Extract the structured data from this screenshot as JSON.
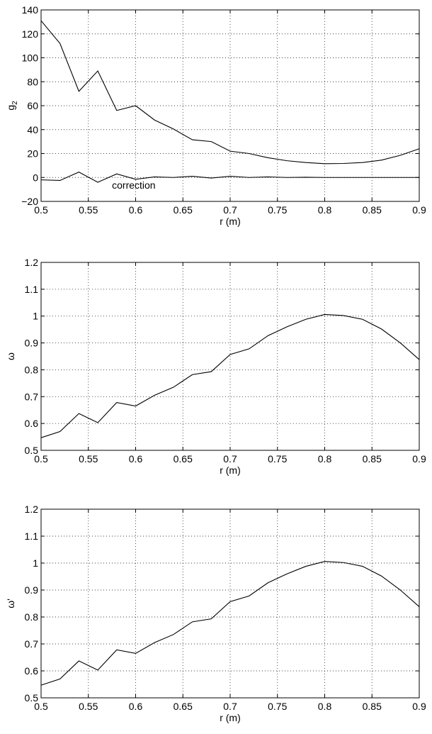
{
  "chart_data": [
    {
      "type": "line",
      "xlabel": "r (m)",
      "ylabel": "g",
      "ylabel_sub": "2",
      "xlim": [
        0.5,
        0.9
      ],
      "ylim": [
        -20,
        140
      ],
      "xticks": [
        0.5,
        0.55,
        0.6,
        0.65,
        0.7,
        0.75,
        0.8,
        0.85,
        0.9
      ],
      "xtick_labels": [
        "0.5",
        "0.55",
        "0.6",
        "0.65",
        "0.7",
        "0.75",
        "0.8",
        "0.85",
        "0.9"
      ],
      "yticks": [
        -20,
        0,
        20,
        40,
        60,
        80,
        100,
        120,
        140
      ],
      "ytick_labels": [
        "−20",
        "0",
        "20",
        "40",
        "60",
        "80",
        "100",
        "120",
        "140"
      ],
      "grid": true,
      "annotations": [
        {
          "text": "correction",
          "x": 0.575,
          "y": -7
        }
      ],
      "series": [
        {
          "x": [
            0.5,
            0.52,
            0.54,
            0.56,
            0.58,
            0.6,
            0.62,
            0.64,
            0.66,
            0.68,
            0.7,
            0.72,
            0.74,
            0.76,
            0.78,
            0.8,
            0.82,
            0.84,
            0.86,
            0.88,
            0.9
          ],
          "values": [
            131,
            112,
            72,
            89,
            56,
            60,
            48,
            40.5,
            31.5,
            30,
            22,
            20,
            16.5,
            14,
            12.5,
            11.5,
            11.7,
            12.5,
            14.5,
            18.5,
            24
          ]
        },
        {
          "name": "correction",
          "x": [
            0.5,
            0.52,
            0.54,
            0.56,
            0.58,
            0.6,
            0.62,
            0.64,
            0.66,
            0.68,
            0.7,
            0.72,
            0.74,
            0.76,
            0.78,
            0.8,
            0.82,
            0.84,
            0.86,
            0.88,
            0.9
          ],
          "values": [
            -2,
            -2.5,
            4.5,
            -4,
            3,
            -1.5,
            0.5,
            0,
            1,
            -0.5,
            1,
            0,
            0.5,
            0,
            0.2,
            0,
            0,
            0,
            0,
            0,
            0
          ]
        }
      ]
    },
    {
      "type": "line",
      "xlabel": "r (m)",
      "ylabel": "ω",
      "ylabel_sub": "",
      "xlim": [
        0.5,
        0.9
      ],
      "ylim": [
        0.5,
        1.2
      ],
      "xticks": [
        0.5,
        0.55,
        0.6,
        0.65,
        0.7,
        0.75,
        0.8,
        0.85,
        0.9
      ],
      "xtick_labels": [
        "0.5",
        "0.55",
        "0.6",
        "0.65",
        "0.7",
        "0.75",
        "0.8",
        "0.85",
        "0.9"
      ],
      "yticks": [
        0.5,
        0.6,
        0.7,
        0.8,
        0.9,
        1.0,
        1.1,
        1.2
      ],
      "ytick_labels": [
        "0.5",
        "0.6",
        "0.7",
        "0.8",
        "0.9",
        "1",
        "1.1",
        "1.2"
      ],
      "grid": true,
      "annotations": [],
      "series": [
        {
          "x": [
            0.5,
            0.52,
            0.54,
            0.56,
            0.58,
            0.6,
            0.62,
            0.64,
            0.66,
            0.68,
            0.7,
            0.72,
            0.74,
            0.76,
            0.78,
            0.8,
            0.82,
            0.84,
            0.86,
            0.88,
            0.9
          ],
          "values": [
            0.547,
            0.57,
            0.637,
            0.603,
            0.678,
            0.665,
            0.705,
            0.735,
            0.782,
            0.793,
            0.857,
            0.878,
            0.927,
            0.96,
            0.988,
            1.006,
            1.002,
            0.988,
            0.952,
            0.9,
            0.838
          ]
        }
      ]
    },
    {
      "type": "line",
      "xlabel": "r (m)",
      "ylabel": "ω'",
      "ylabel_sub": "",
      "xlim": [
        0.5,
        0.9
      ],
      "ylim": [
        0.5,
        1.2
      ],
      "xticks": [
        0.5,
        0.55,
        0.6,
        0.65,
        0.7,
        0.75,
        0.8,
        0.85,
        0.9
      ],
      "xtick_labels": [
        "0.5",
        "0.55",
        "0.6",
        "0.65",
        "0.7",
        "0.75",
        "0.8",
        "0.85",
        "0.9"
      ],
      "yticks": [
        0.5,
        0.6,
        0.7,
        0.8,
        0.9,
        1.0,
        1.1,
        1.2
      ],
      "ytick_labels": [
        "0.5",
        "0.6",
        "0.7",
        "0.8",
        "0.9",
        "1",
        "1.1",
        "1.2"
      ],
      "grid": true,
      "annotations": [],
      "series": [
        {
          "x": [
            0.5,
            0.52,
            0.54,
            0.56,
            0.58,
            0.6,
            0.62,
            0.64,
            0.66,
            0.68,
            0.7,
            0.72,
            0.74,
            0.76,
            0.78,
            0.8,
            0.82,
            0.84,
            0.86,
            0.88,
            0.9
          ],
          "values": [
            0.547,
            0.57,
            0.637,
            0.603,
            0.678,
            0.665,
            0.705,
            0.735,
            0.782,
            0.793,
            0.857,
            0.878,
            0.927,
            0.96,
            0.988,
            1.006,
            1.002,
            0.988,
            0.952,
            0.9,
            0.838
          ]
        }
      ]
    }
  ]
}
